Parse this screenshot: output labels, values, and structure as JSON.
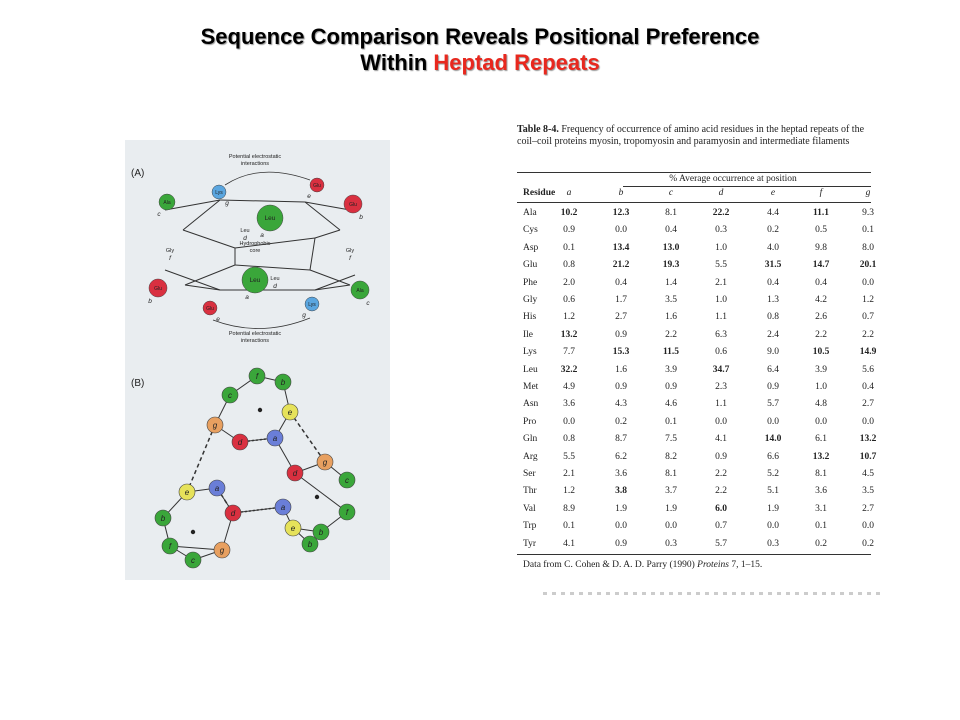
{
  "title": {
    "line1": "Sequence Comparison Reveals Positional Preference",
    "line2_black": "Within",
    "line2_red": "Heptad Repeats"
  },
  "colors": {
    "title_red": "#e8281e",
    "green": "#3aa63a",
    "red": "#d93040",
    "blue": "#5aa6e0",
    "orange": "#e8a060",
    "yellow": "#e6e25a",
    "indigo": "#6a7ed8"
  },
  "figure": {
    "panel_a_label": "(A)",
    "panel_b_label": "(B)",
    "electrostatic_top": [
      "Potential electrostatic",
      "interactions"
    ],
    "electrostatic_bottom": [
      "Potential electrostatic",
      "interactions"
    ],
    "core_label": [
      "Hydrophobic",
      "core"
    ],
    "residues_a": [
      {
        "name": "Ala",
        "pos": "c",
        "color": "green"
      },
      {
        "name": "Lys",
        "pos": "g",
        "color": "blue"
      },
      {
        "name": "Leu",
        "pos": "a",
        "color": "green"
      },
      {
        "name": "Leu",
        "pos": "d",
        "color": "green"
      },
      {
        "name": "Glu",
        "pos": "e",
        "color": "red"
      },
      {
        "name": "Glu",
        "pos": "b",
        "color": "red"
      },
      {
        "name": "Gly",
        "pos": "f",
        "color": "none"
      },
      {
        "name": "Gly",
        "pos": "f",
        "color": "none"
      },
      {
        "name": "Leu",
        "pos": "a",
        "color": "green"
      },
      {
        "name": "Leu",
        "pos": "d",
        "color": "green"
      },
      {
        "name": "Glu",
        "pos": "b",
        "color": "red"
      },
      {
        "name": "Glu",
        "pos": "e",
        "color": "red"
      },
      {
        "name": "Lys",
        "pos": "g",
        "color": "blue"
      },
      {
        "name": "Ala",
        "pos": "c",
        "color": "green"
      }
    ],
    "wheel_letters": [
      "f",
      "b",
      "c",
      "e",
      "g",
      "d",
      "a",
      "d",
      "g",
      "c",
      "e",
      "a",
      "f",
      "b",
      "d",
      "a",
      "e",
      "b",
      "f",
      "g",
      "c",
      "b"
    ]
  },
  "table": {
    "caption_bold": "Table 8-4.",
    "caption_text": "Frequency of occurrence of amino acid residues in the heptad repeats of the coil–coil proteins myosin, tropomyosin and paramyosin and intermediate filaments",
    "group_header": "% Average occurrence at position",
    "residue_header": "Residue",
    "positions": [
      "a",
      "b",
      "c",
      "d",
      "e",
      "f",
      "g"
    ],
    "rows": [
      {
        "residue": "Ala",
        "values": [
          "10.2",
          "12.3",
          "8.1",
          "22.2",
          "4.4",
          "11.1",
          "9.3"
        ],
        "bold": [
          true,
          true,
          false,
          true,
          false,
          true,
          false
        ]
      },
      {
        "residue": "Cys",
        "values": [
          "0.9",
          "0.0",
          "0.4",
          "0.3",
          "0.2",
          "0.5",
          "0.1"
        ],
        "bold": [
          false,
          false,
          false,
          false,
          false,
          false,
          false
        ]
      },
      {
        "residue": "Asp",
        "values": [
          "0.1",
          "13.4",
          "13.0",
          "1.0",
          "4.0",
          "9.8",
          "8.0"
        ],
        "bold": [
          false,
          true,
          true,
          false,
          false,
          false,
          false
        ]
      },
      {
        "residue": "Glu",
        "values": [
          "0.8",
          "21.2",
          "19.3",
          "5.5",
          "31.5",
          "14.7",
          "20.1"
        ],
        "bold": [
          false,
          true,
          true,
          false,
          true,
          true,
          true
        ]
      },
      {
        "residue": "Phe",
        "values": [
          "2.0",
          "0.4",
          "1.4",
          "2.1",
          "0.4",
          "0.4",
          "0.0"
        ],
        "bold": [
          false,
          false,
          false,
          false,
          false,
          false,
          false
        ]
      },
      {
        "residue": "Gly",
        "values": [
          "0.6",
          "1.7",
          "3.5",
          "1.0",
          "1.3",
          "4.2",
          "1.2"
        ],
        "bold": [
          false,
          false,
          false,
          false,
          false,
          false,
          false
        ]
      },
      {
        "residue": "His",
        "values": [
          "1.2",
          "2.7",
          "1.6",
          "1.1",
          "0.8",
          "2.6",
          "0.7"
        ],
        "bold": [
          false,
          false,
          false,
          false,
          false,
          false,
          false
        ]
      },
      {
        "residue": "Ile",
        "values": [
          "13.2",
          "0.9",
          "2.2",
          "6.3",
          "2.4",
          "2.2",
          "2.2"
        ],
        "bold": [
          true,
          false,
          false,
          false,
          false,
          false,
          false
        ]
      },
      {
        "residue": "Lys",
        "values": [
          "7.7",
          "15.3",
          "11.5",
          "0.6",
          "9.0",
          "10.5",
          "14.9"
        ],
        "bold": [
          false,
          true,
          true,
          false,
          false,
          true,
          true
        ]
      },
      {
        "residue": "Leu",
        "values": [
          "32.2",
          "1.6",
          "3.9",
          "34.7",
          "6.4",
          "3.9",
          "5.6"
        ],
        "bold": [
          true,
          false,
          false,
          true,
          false,
          false,
          false
        ]
      },
      {
        "residue": "Met",
        "values": [
          "4.9",
          "0.9",
          "0.9",
          "2.3",
          "0.9",
          "1.0",
          "0.4"
        ],
        "bold": [
          false,
          false,
          false,
          false,
          false,
          false,
          false
        ]
      },
      {
        "residue": "Asn",
        "values": [
          "3.6",
          "4.3",
          "4.6",
          "1.1",
          "5.7",
          "4.8",
          "2.7"
        ],
        "bold": [
          false,
          false,
          false,
          false,
          false,
          false,
          false
        ]
      },
      {
        "residue": "Pro",
        "values": [
          "0.0",
          "0.2",
          "0.1",
          "0.0",
          "0.0",
          "0.0",
          "0.0"
        ],
        "bold": [
          false,
          false,
          false,
          false,
          false,
          false,
          false
        ]
      },
      {
        "residue": "Gln",
        "values": [
          "0.8",
          "8.7",
          "7.5",
          "4.1",
          "14.0",
          "6.1",
          "13.2"
        ],
        "bold": [
          false,
          false,
          false,
          false,
          true,
          false,
          true
        ]
      },
      {
        "residue": "Arg",
        "values": [
          "5.5",
          "6.2",
          "8.2",
          "0.9",
          "6.6",
          "13.2",
          "10.7"
        ],
        "bold": [
          false,
          false,
          false,
          false,
          false,
          true,
          true
        ]
      },
      {
        "residue": "Ser",
        "values": [
          "2.1",
          "3.6",
          "8.1",
          "2.2",
          "5.2",
          "8.1",
          "4.5"
        ],
        "bold": [
          false,
          false,
          false,
          false,
          false,
          false,
          false
        ]
      },
      {
        "residue": "Thr",
        "values": [
          "1.2",
          "3.8",
          "3.7",
          "2.2",
          "5.1",
          "3.6",
          "3.5"
        ],
        "bold": [
          false,
          true,
          false,
          false,
          false,
          false,
          false
        ]
      },
      {
        "residue": "Val",
        "values": [
          "8.9",
          "1.9",
          "1.9",
          "6.0",
          "1.9",
          "3.1",
          "2.7"
        ],
        "bold": [
          false,
          false,
          false,
          true,
          false,
          false,
          false
        ]
      },
      {
        "residue": "Trp",
        "values": [
          "0.1",
          "0.0",
          "0.0",
          "0.7",
          "0.0",
          "0.1",
          "0.0"
        ],
        "bold": [
          false,
          false,
          false,
          false,
          false,
          false,
          false
        ]
      },
      {
        "residue": "Tyr",
        "values": [
          "4.1",
          "0.9",
          "0.3",
          "5.7",
          "0.3",
          "0.2",
          "0.2"
        ],
        "bold": [
          false,
          false,
          false,
          false,
          false,
          false,
          false
        ]
      }
    ],
    "source_text": "Data from C. Cohen & D. A. D. Parry (1990)",
    "source_journal": "Proteins",
    "source_rest": "7, 1–15."
  }
}
